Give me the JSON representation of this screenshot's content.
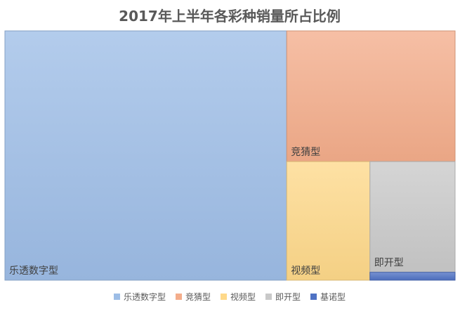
{
  "chart_data": {
    "type": "treemap",
    "title": "2017年上半年各彩种销量所占比例",
    "series": [
      {
        "name": "乐透数字型",
        "value": 62.6,
        "color": "#9dbde6"
      },
      {
        "name": "竞猜型",
        "value": 19.6,
        "color": "#f4ad8b"
      },
      {
        "name": "视频型",
        "value": 8.8,
        "color": "#fed98a"
      },
      {
        "name": "即开型",
        "value": 8.4,
        "color": "#c9c9c9"
      },
      {
        "name": "基诺型",
        "value": 0.6,
        "color": "#4f72c4"
      }
    ],
    "legend_position": "bottom"
  }
}
